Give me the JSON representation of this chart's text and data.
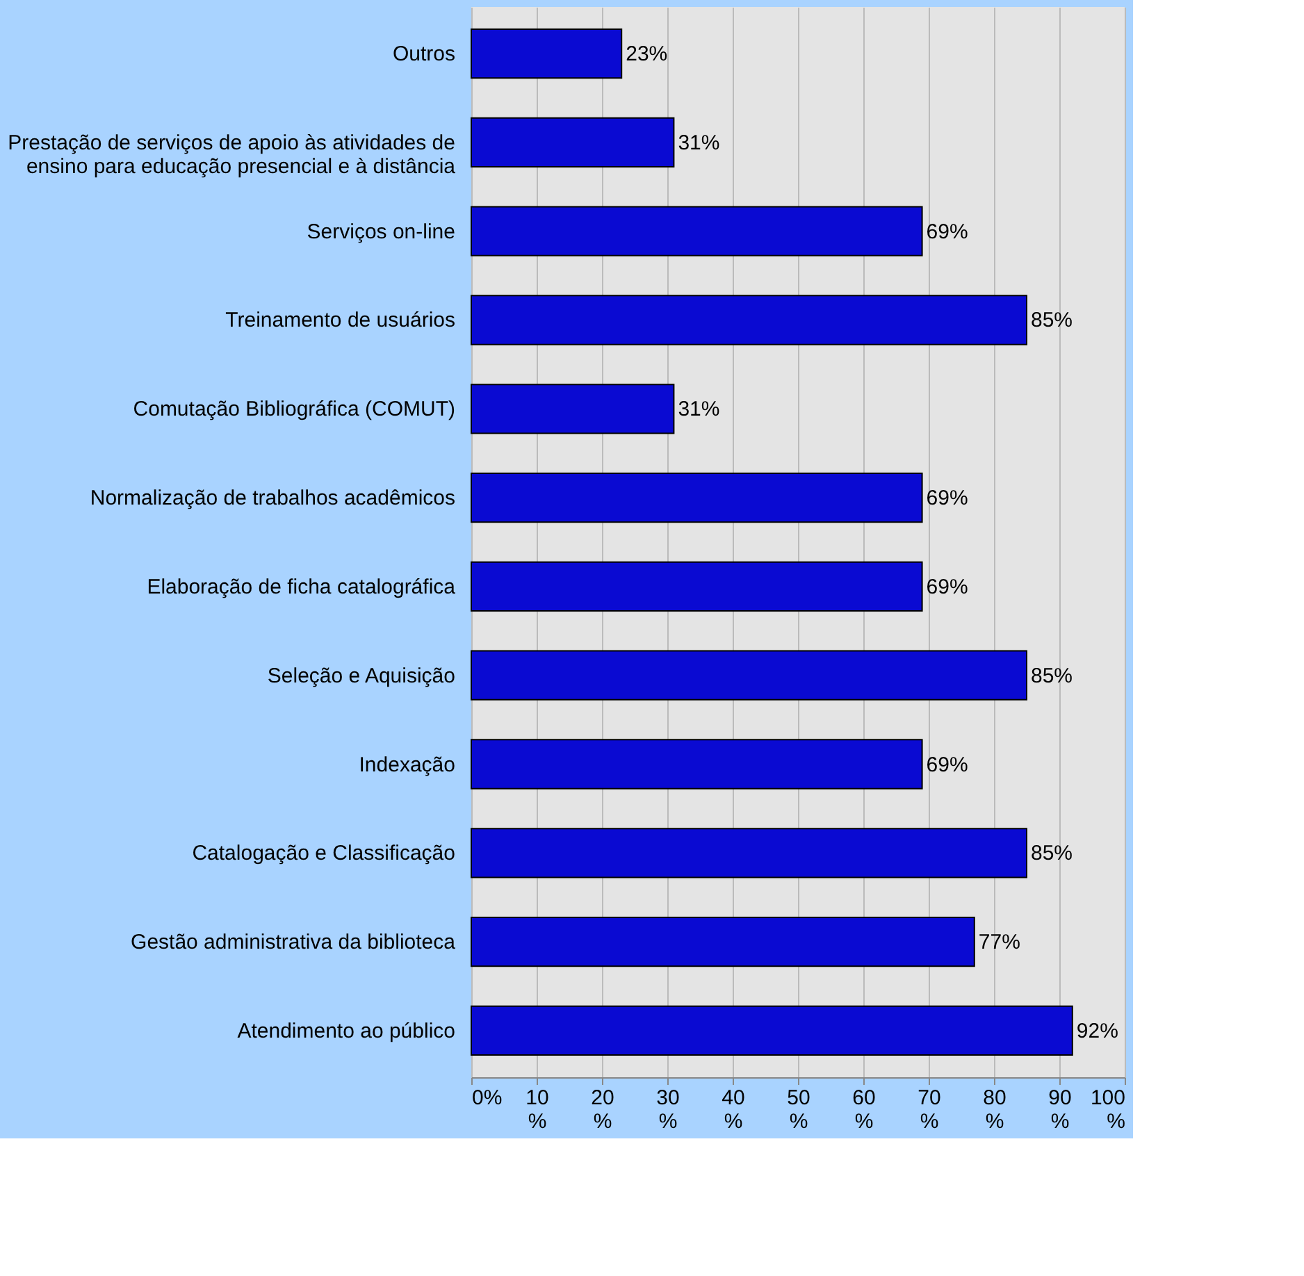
{
  "chart_data": {
    "type": "bar",
    "orientation": "horizontal",
    "categories": [
      "Outros",
      "Prestação de serviços de apoio às atividades de ensino para educação presencial e à distância",
      "Serviços on-line",
      "Treinamento de usuários",
      "Comutação Bibliográfica (COMUT)",
      "Normalização de trabalhos acadêmicos",
      "Elaboração de ficha catalográfica",
      "Seleção e Aquisição",
      "Indexação",
      "Catalogação e Classificação",
      "Gestão administrativa da biblioteca",
      "Atendimento ao público"
    ],
    "values": [
      23,
      31,
      69,
      85,
      31,
      69,
      69,
      85,
      69,
      85,
      77,
      92
    ],
    "value_labels": [
      "23%",
      "31%",
      "69%",
      "85%",
      "31%",
      "69%",
      "69%",
      "85%",
      "69%",
      "85%",
      "77%",
      "92%"
    ],
    "color": "#0a0ad2",
    "xlim": [
      0,
      100
    ],
    "xticks": [
      {
        "value": 0,
        "label": "0%"
      },
      {
        "value": 10,
        "label": "10%"
      },
      {
        "value": 20,
        "label": "20%"
      },
      {
        "value": 30,
        "label": "30%"
      },
      {
        "value": 40,
        "label": "40%"
      },
      {
        "value": 50,
        "label": "50%"
      },
      {
        "value": 60,
        "label": "60%"
      },
      {
        "value": 70,
        "label": "70%"
      },
      {
        "value": 80,
        "label": "80%"
      },
      {
        "value": 90,
        "label": "90%"
      },
      {
        "value": 100,
        "label": "100%"
      }
    ],
    "grid": "x"
  }
}
